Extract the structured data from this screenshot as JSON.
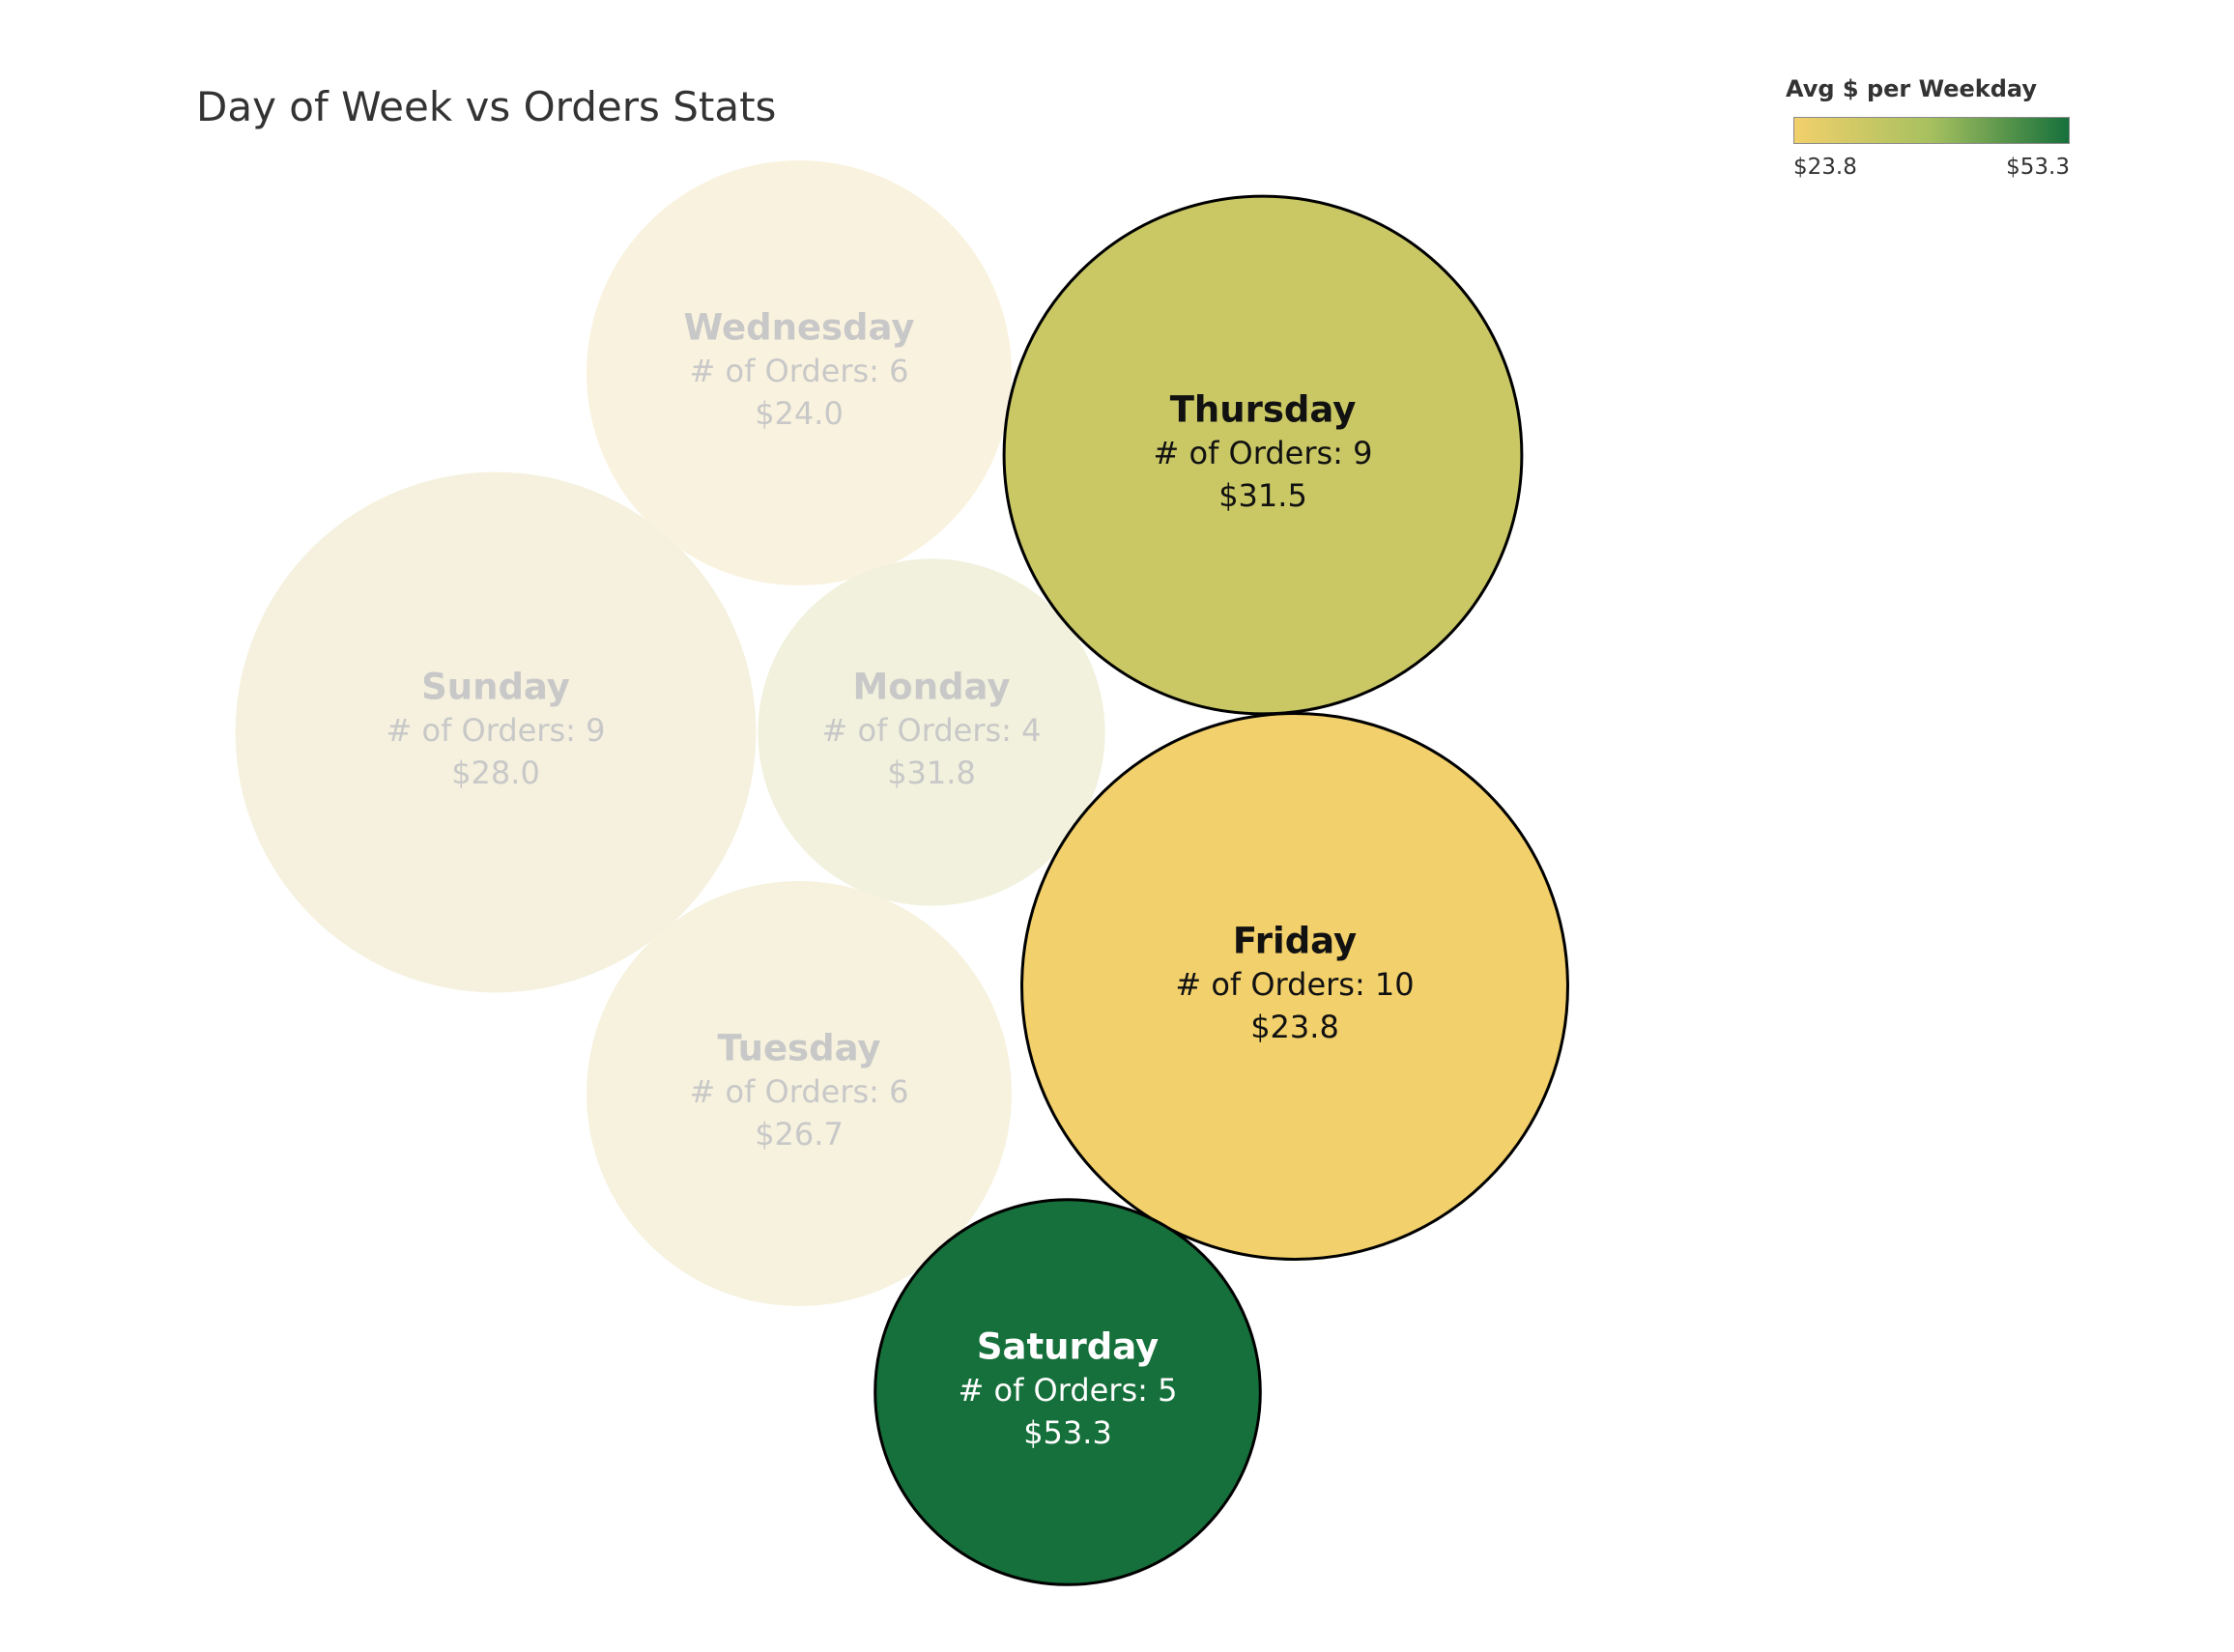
{
  "chart_data": {
    "type": "packed-bubble",
    "title": "Day of Week vs Orders Stats",
    "size_measure": "# of Orders",
    "color_measure": "Avg $ per Weekday",
    "legend": {
      "title": "Avg $ per Weekday",
      "min_label": "$23.8",
      "max_label": "$53.3",
      "min": 23.8,
      "max": 53.3,
      "colors": [
        "#f2d06b",
        "#a6c05f",
        "#16703b"
      ],
      "placement": "top-right"
    },
    "count_prefix": "# of Orders: ",
    "highlighted": [
      "Thursday",
      "Friday",
      "Saturday"
    ],
    "series": [
      {
        "day": "Wednesday",
        "orders": 6,
        "avg": 24.0,
        "avg_label": "$24.0",
        "highlight": false
      },
      {
        "day": "Thursday",
        "orders": 9,
        "avg": 31.5,
        "avg_label": "$31.5",
        "highlight": true
      },
      {
        "day": "Sunday",
        "orders": 9,
        "avg": 28.0,
        "avg_label": "$28.0",
        "highlight": false
      },
      {
        "day": "Monday",
        "orders": 4,
        "avg": 31.8,
        "avg_label": "$31.8",
        "highlight": false
      },
      {
        "day": "Friday",
        "orders": 10,
        "avg": 23.8,
        "avg_label": "$23.8",
        "highlight": true
      },
      {
        "day": "Tuesday",
        "orders": 6,
        "avg": 26.7,
        "avg_label": "$26.7",
        "highlight": false
      },
      {
        "day": "Saturday",
        "orders": 5,
        "avg": 53.3,
        "avg_label": "$53.3",
        "highlight": true
      }
    ]
  }
}
